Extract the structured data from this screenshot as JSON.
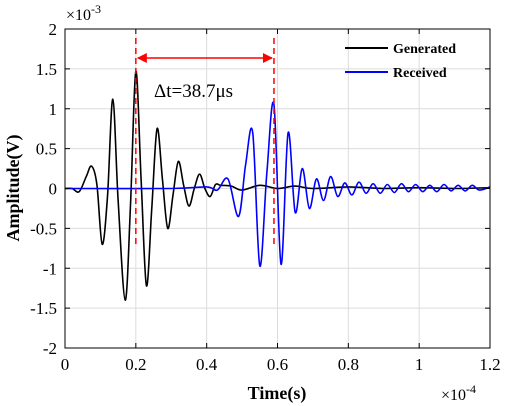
{
  "chart_data": {
    "type": "line",
    "xlabel": "Time(s)",
    "ylabel": "Amplitude(V)",
    "x_exponent_label": "×10",
    "x_exponent_power": "-4",
    "y_exponent_label": "×10",
    "y_exponent_power": "-3",
    "xlim": [
      0,
      1.2
    ],
    "ylim": [
      -2,
      2
    ],
    "x_ticks": [
      "0",
      "0.2",
      "0.4",
      "0.6",
      "0.8",
      "1",
      "1.2"
    ],
    "y_ticks": [
      "2",
      "1.5",
      "1",
      "0.5",
      "0",
      "-0.5",
      "-1",
      "-1.5",
      "-2"
    ],
    "grid": true,
    "legend_position": "top-right",
    "series": [
      {
        "name": "Generated",
        "color": "#000000",
        "x": [
          0,
          0.02,
          0.04,
          0.06,
          0.075,
          0.09,
          0.105,
          0.12,
          0.135,
          0.15,
          0.17,
          0.185,
          0.2,
          0.215,
          0.23,
          0.245,
          0.26,
          0.275,
          0.29,
          0.305,
          0.32,
          0.335,
          0.35,
          0.365,
          0.38,
          0.395,
          0.41,
          0.425,
          0.44,
          0.47,
          0.5,
          0.55,
          0.6,
          0.65,
          0.7,
          0.8,
          0.9,
          1.0,
          1.1,
          1.2
        ],
        "y": [
          0,
          0.0,
          -0.04,
          0.15,
          0.28,
          0.05,
          -0.7,
          -0.1,
          1.12,
          -0.15,
          -1.4,
          -0.2,
          1.47,
          0.1,
          -1.22,
          -0.25,
          0.75,
          0.12,
          -0.5,
          -0.08,
          0.34,
          0.04,
          -0.22,
          0.0,
          0.18,
          0.0,
          -0.1,
          0.05,
          0.04,
          0.03,
          -0.02,
          0.04,
          0.0,
          0.03,
          0.0,
          0.02,
          0.0,
          0.01,
          0.0,
          0.01
        ]
      },
      {
        "name": "Received",
        "color": "#0000ff",
        "x": [
          0,
          0.3,
          0.4,
          0.43,
          0.46,
          0.49,
          0.51,
          0.53,
          0.55,
          0.57,
          0.59,
          0.61,
          0.63,
          0.65,
          0.67,
          0.69,
          0.71,
          0.73,
          0.75,
          0.77,
          0.79,
          0.81,
          0.83,
          0.85,
          0.87,
          0.89,
          0.91,
          0.93,
          0.95,
          0.97,
          0.99,
          1.01,
          1.03,
          1.05,
          1.07,
          1.09,
          1.11,
          1.13,
          1.15,
          1.17,
          1.2
        ],
        "y": [
          0,
          0,
          0.02,
          -0.02,
          0.12,
          -0.35,
          0.3,
          0.7,
          -0.97,
          0.2,
          1.05,
          -0.95,
          0.7,
          -0.3,
          0.25,
          -0.25,
          0.12,
          -0.15,
          0.15,
          -0.1,
          0.07,
          -0.08,
          0.08,
          -0.06,
          0.06,
          -0.06,
          0.05,
          -0.05,
          0.06,
          -0.04,
          0.05,
          -0.04,
          0.04,
          -0.04,
          0.05,
          -0.03,
          0.04,
          -0.03,
          0.04,
          -0.02,
          0.02
        ]
      }
    ],
    "annotation": {
      "text": "Δt=38.7μs",
      "x_start": 0.2,
      "x_end": 0.59,
      "color": "#ff0000"
    }
  }
}
